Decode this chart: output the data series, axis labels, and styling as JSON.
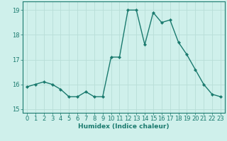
{
  "x": [
    0,
    1,
    2,
    3,
    4,
    5,
    6,
    7,
    8,
    9,
    10,
    11,
    12,
    13,
    14,
    15,
    16,
    17,
    18,
    19,
    20,
    21,
    22,
    23
  ],
  "y": [
    15.9,
    16.0,
    16.1,
    16.0,
    15.8,
    15.5,
    15.5,
    15.7,
    15.5,
    15.5,
    17.1,
    17.1,
    19.0,
    19.0,
    17.6,
    18.9,
    18.5,
    18.6,
    17.7,
    17.2,
    16.6,
    16.0,
    15.6,
    15.5
  ],
  "line_color": "#1a7a6e",
  "marker": "D",
  "markersize": 2.2,
  "linewidth": 1.0,
  "bg_color": "#cff0eb",
  "grid_color": "#b8ddd7",
  "xlabel": "Humidex (Indice chaleur)",
  "ylabel": "",
  "xlim": [
    -0.5,
    23.5
  ],
  "ylim": [
    14.85,
    19.35
  ],
  "yticks": [
    15,
    16,
    17,
    18,
    19
  ],
  "xticks": [
    0,
    1,
    2,
    3,
    4,
    5,
    6,
    7,
    8,
    9,
    10,
    11,
    12,
    13,
    14,
    15,
    16,
    17,
    18,
    19,
    20,
    21,
    22,
    23
  ],
  "xlabel_fontsize": 6.5,
  "tick_fontsize": 6.0,
  "tick_color": "#1a7a6e",
  "axis_color": "#1a7a6e"
}
